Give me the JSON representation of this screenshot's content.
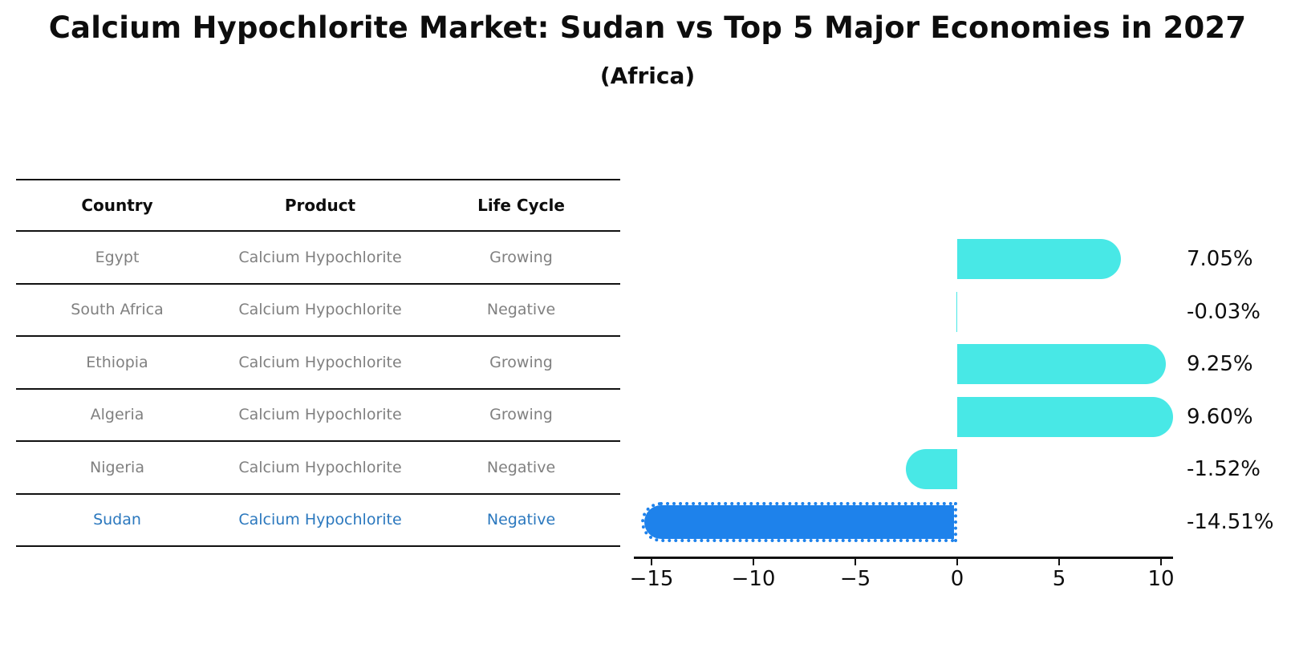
{
  "header": {
    "title": "Calcium Hypochlorite Market: Sudan vs Top 5 Major Economies in 2027",
    "subtitle": "(Africa)"
  },
  "table": {
    "columns": [
      "Country",
      "Product",
      "Life Cycle"
    ],
    "rows": [
      {
        "country": "Egypt",
        "product": "Calcium Hypochlorite",
        "life_cycle": "Growing",
        "highlight": false
      },
      {
        "country": "South Africa",
        "product": "Calcium Hypochlorite",
        "life_cycle": "Negative",
        "highlight": false
      },
      {
        "country": "Ethiopia",
        "product": "Calcium Hypochlorite",
        "life_cycle": "Growing",
        "highlight": false
      },
      {
        "country": "Algeria",
        "product": "Calcium Hypochlorite",
        "life_cycle": "Growing",
        "highlight": false
      },
      {
        "country": "Nigeria",
        "product": "Calcium Hypochlorite",
        "life_cycle": "Negative",
        "highlight": false
      },
      {
        "country": "Sudan",
        "product": "Calcium Hypochlorite",
        "life_cycle": "Negative",
        "highlight": true
      }
    ]
  },
  "chart_data": {
    "type": "bar",
    "orientation": "horizontal",
    "title": "Calcium Hypochlorite Market: Sudan vs Top 5 Major Economies in 2027 (Africa)",
    "categories": [
      "Egypt",
      "South Africa",
      "Ethiopia",
      "Algeria",
      "Nigeria",
      "Sudan"
    ],
    "values": [
      7.05,
      -0.03,
      9.25,
      9.6,
      -1.52,
      -14.51
    ],
    "value_labels": [
      "7.05%",
      "-0.03%",
      "9.25%",
      "9.60%",
      "-1.52%",
      "-14.51%"
    ],
    "unit": "%",
    "highlight_category": "Sudan",
    "xlim": [
      -15.9,
      10.6
    ],
    "x_ticks": [
      -15,
      -10,
      -5,
      0,
      5,
      10
    ],
    "x_tick_labels": [
      "−15",
      "−10",
      "−5",
      "0",
      "5",
      "10"
    ],
    "grid": false,
    "legend": false,
    "colors": {
      "bar": "#48E8E6",
      "highlight_bar": "#1E82EB",
      "highlight_text": "#2B78BE",
      "table_text": "#808080",
      "axis": "#111111"
    }
  }
}
